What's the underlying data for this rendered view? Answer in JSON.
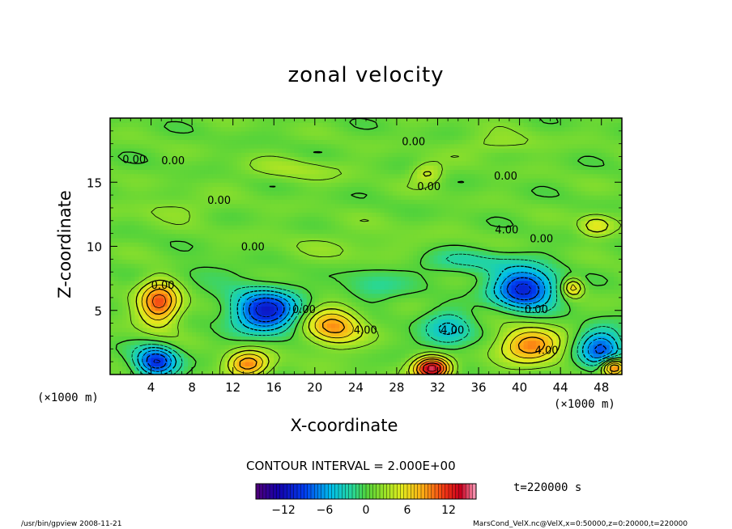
{
  "chart_data": {
    "type": "heatmap",
    "title": "zonal velocity",
    "xlabel": "X-coordinate",
    "ylabel": "Z-coordinate",
    "x_unit_left": "(×1000 m)",
    "x_unit_right": "(×1000 m)",
    "x_ticks": [
      4,
      8,
      12,
      16,
      20,
      24,
      28,
      32,
      36,
      40,
      44,
      48
    ],
    "x_tick_labels": [
      "4",
      "8",
      "12",
      "16",
      "20",
      "24",
      "28",
      "32",
      "36",
      "40",
      "44",
      "48"
    ],
    "y_ticks": [
      5,
      10,
      15
    ],
    "y_tick_labels": [
      "5",
      "10",
      "15"
    ],
    "xlim": [
      0,
      50
    ],
    "ylim": [
      0,
      20
    ],
    "contour_interval_text": "CONTOUR INTERVAL = 2.000E+00",
    "time_text": "t=220000 s",
    "colorbar": {
      "range": [
        -16,
        16
      ],
      "ticks": [
        -12,
        -6,
        0,
        6,
        12
      ],
      "tick_labels": [
        "−12",
        "−6",
        "0",
        "6",
        "12"
      ]
    },
    "contour_labels": [
      {
        "text": "0.00",
        "x": 1.2,
        "z": 16.5
      },
      {
        "text": "0.00",
        "x": 5.0,
        "z": 16.4
      },
      {
        "text": "0.00",
        "x": 28.5,
        "z": 17.9
      },
      {
        "text": "0.00",
        "x": 37.5,
        "z": 15.2
      },
      {
        "text": "0.00",
        "x": 30.0,
        "z": 14.4
      },
      {
        "text": "0.00",
        "x": 9.5,
        "z": 13.3
      },
      {
        "text": "4.00",
        "x": 37.6,
        "z": 11.0
      },
      {
        "text": "0.00",
        "x": 41.0,
        "z": 10.3
      },
      {
        "text": "0.00",
        "x": 12.8,
        "z": 9.7
      },
      {
        "text": "0.00",
        "x": 4.0,
        "z": 6.7
      },
      {
        "text": "0.00",
        "x": 17.8,
        "z": 4.8
      },
      {
        "text": "4.00",
        "x": 23.8,
        "z": 3.2
      },
      {
        "text": "4.00",
        "x": 32.3,
        "z": 3.2
      },
      {
        "text": "0.00",
        "x": 40.5,
        "z": 4.8
      },
      {
        "text": "4.00",
        "x": 41.5,
        "z": 1.6
      }
    ],
    "features": [
      {
        "x": 4.8,
        "z": 5.6,
        "value": 10,
        "sx": 2.0,
        "sz": 1.8
      },
      {
        "x": 15.2,
        "z": 5.0,
        "value": -12,
        "sx": 3.2,
        "sz": 1.6
      },
      {
        "x": 21.8,
        "z": 3.8,
        "value": 8,
        "sx": 2.8,
        "sz": 1.5
      },
      {
        "x": 33.0,
        "z": 3.4,
        "value": -5,
        "sx": 2.5,
        "sz": 1.6
      },
      {
        "x": 40.5,
        "z": 6.7,
        "value": -12,
        "sx": 3.0,
        "sz": 1.5
      },
      {
        "x": 41.0,
        "z": 2.3,
        "value": 9,
        "sx": 3.0,
        "sz": 1.3
      },
      {
        "x": 31.5,
        "z": 0.5,
        "value": 15,
        "sx": 1.8,
        "sz": 0.9
      },
      {
        "x": 13.5,
        "z": 0.8,
        "value": 9,
        "sx": 2.0,
        "sz": 1.0
      },
      {
        "x": 4.5,
        "z": 1.0,
        "value": -11,
        "sx": 2.0,
        "sz": 1.2
      },
      {
        "x": 48.0,
        "z": 2.0,
        "value": -9,
        "sx": 2.2,
        "sz": 1.6
      },
      {
        "x": 49.2,
        "z": 0.6,
        "value": 12,
        "sx": 1.2,
        "sz": 0.7
      },
      {
        "x": 45.2,
        "z": 6.8,
        "value": 7,
        "sx": 1.0,
        "sz": 0.7
      },
      {
        "x": 24.5,
        "z": 10.0,
        "value": 1,
        "sx": 9.0,
        "sz": 1.5
      },
      {
        "x": 31.0,
        "z": 15.7,
        "value": 4,
        "sx": 1.5,
        "sz": 0.8
      },
      {
        "x": 18.0,
        "z": 16.0,
        "value": 2,
        "sx": 5.0,
        "sz": 0.9
      },
      {
        "x": 38.0,
        "z": 18.0,
        "value": 2,
        "sx": 4.0,
        "sz": 0.8
      },
      {
        "x": 6.0,
        "z": 13.0,
        "value": 1.5,
        "sx": 5.0,
        "sz": 0.9
      },
      {
        "x": 47.5,
        "z": 11.6,
        "value": 5,
        "sx": 1.6,
        "sz": 0.8
      },
      {
        "x": 35.0,
        "z": 8.8,
        "value": -3,
        "sx": 6.0,
        "sz": 1.0
      },
      {
        "x": 9.0,
        "z": 8.0,
        "value": -1.5,
        "sx": 4.0,
        "sz": 1.0
      },
      {
        "x": 25.5,
        "z": 6.8,
        "value": -3,
        "sx": 3.0,
        "sz": 1.2
      }
    ]
  },
  "footer": {
    "left": "/usr/bin/gpview   2008-11-21",
    "right": "MarsCond_VelX.nc@VelX,x=0:50000,z=0:20000,t=220000"
  },
  "colors": {
    "frame": "#000000",
    "background": "#ffffff"
  }
}
